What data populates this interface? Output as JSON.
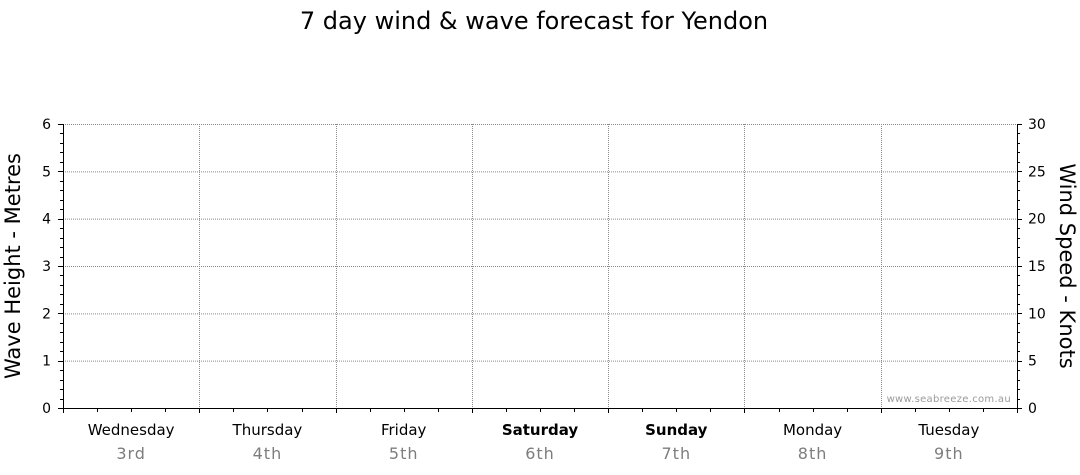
{
  "chart_data": {
    "type": "line",
    "title": "7 day wind & wave forecast for Yendon",
    "ylabel_left": "Wave Height - Metres",
    "ylabel_right": "Wind Speed - Knots",
    "ylim_left": [
      0,
      6
    ],
    "ylim_right": [
      0,
      30
    ],
    "yticks_left": [
      "0",
      "1",
      "2",
      "3",
      "4",
      "5",
      "6"
    ],
    "yticks_right": [
      "0",
      "5",
      "10",
      "15",
      "20",
      "25",
      "30"
    ],
    "days": [
      {
        "name": "Wednesday",
        "date": "3rd",
        "bold": false
      },
      {
        "name": "Thursday",
        "date": "4th",
        "bold": false
      },
      {
        "name": "Friday",
        "date": "5th",
        "bold": false
      },
      {
        "name": "Saturday",
        "date": "6th",
        "bold": true
      },
      {
        "name": "Sunday",
        "date": "7th",
        "bold": true
      },
      {
        "name": "Monday",
        "date": "8th",
        "bold": false
      },
      {
        "name": "Tuesday",
        "date": "9th",
        "bold": false
      }
    ],
    "grid": true,
    "series": [],
    "watermark": "www.seabreeze.com.au"
  }
}
